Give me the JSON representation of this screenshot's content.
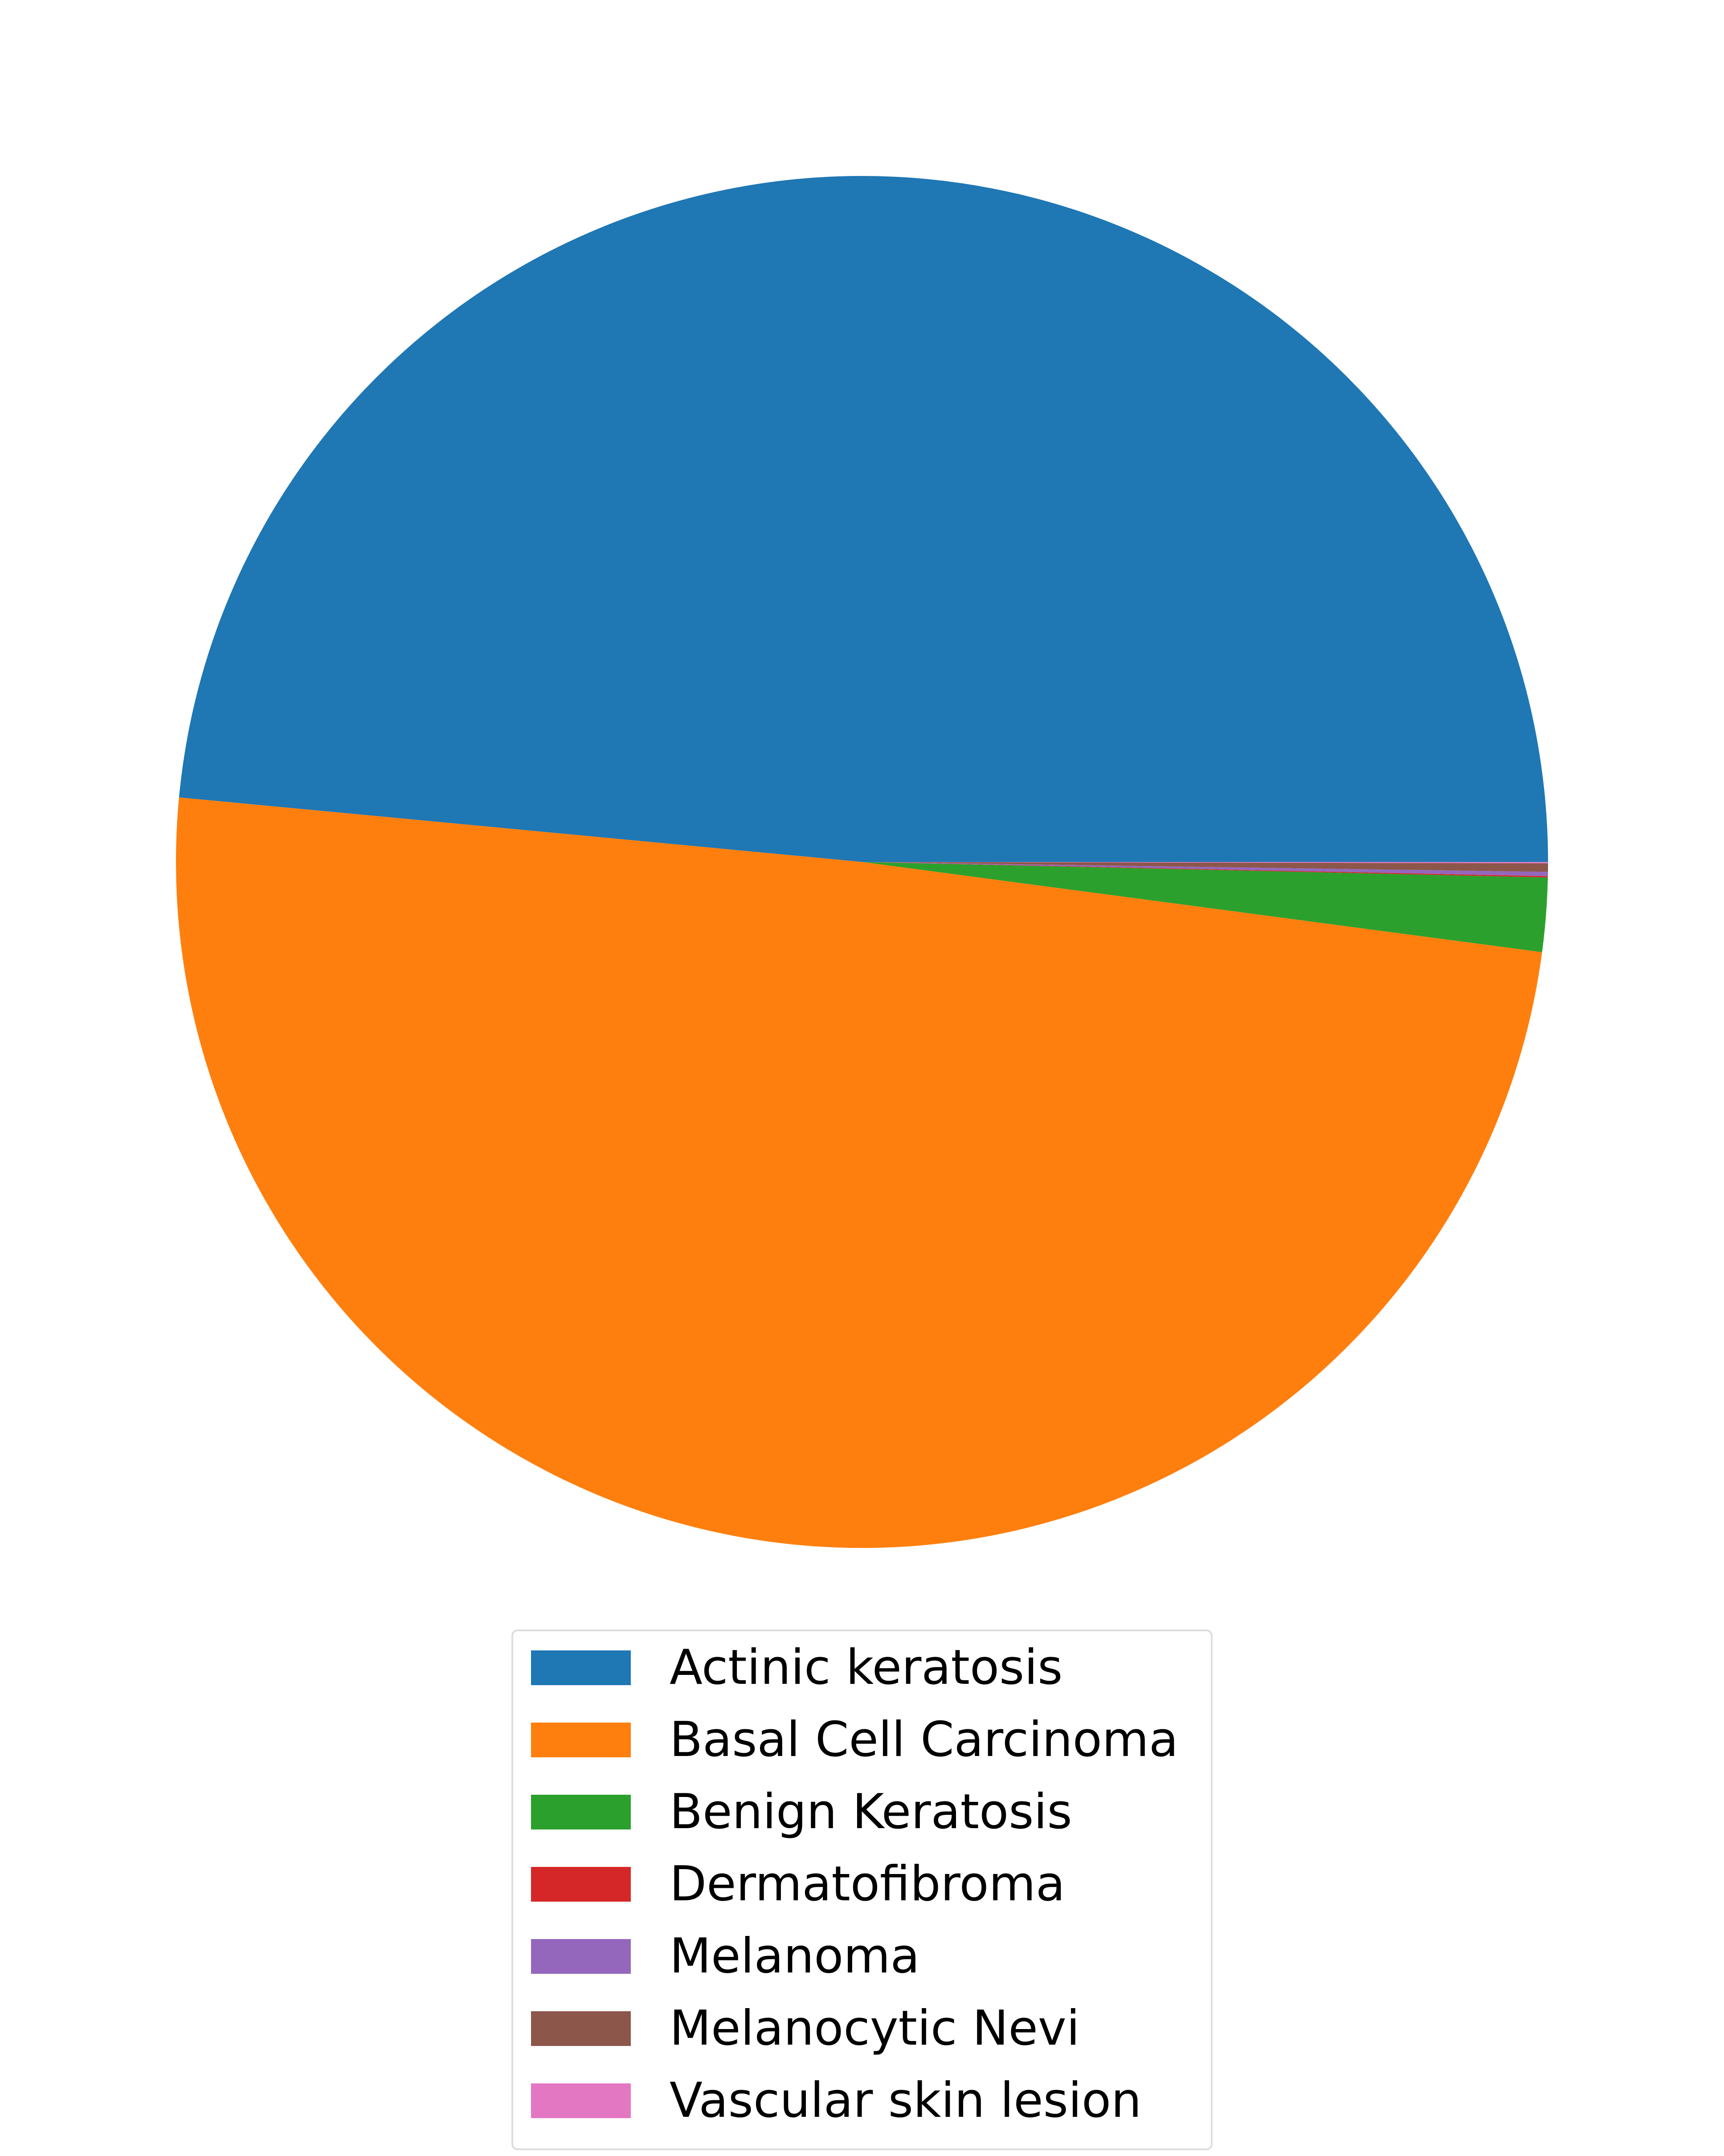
{
  "chart_data": {
    "type": "pie",
    "title": "",
    "start_angle_deg": 0,
    "direction": "counterclockwise",
    "legend_position": "bottom-center",
    "slices": [
      {
        "label": "Actinic keratosis",
        "value": 48.5,
        "color": "#1f77b4"
      },
      {
        "label": "Basal Cell Carcinoma",
        "value": 49.4,
        "color": "#ff7f0e"
      },
      {
        "label": "Benign Keratosis",
        "value": 1.74,
        "color": "#2ca02c"
      },
      {
        "label": "Dermatofibroma",
        "value": 0.03,
        "color": "#d62728"
      },
      {
        "label": "Melanoma",
        "value": 0.1,
        "color": "#9467bd"
      },
      {
        "label": "Melanocytic Nevi",
        "value": 0.2,
        "color": "#8c564b"
      },
      {
        "label": "Vascular skin lesion",
        "value": 0.03,
        "color": "#e377c2"
      }
    ]
  }
}
